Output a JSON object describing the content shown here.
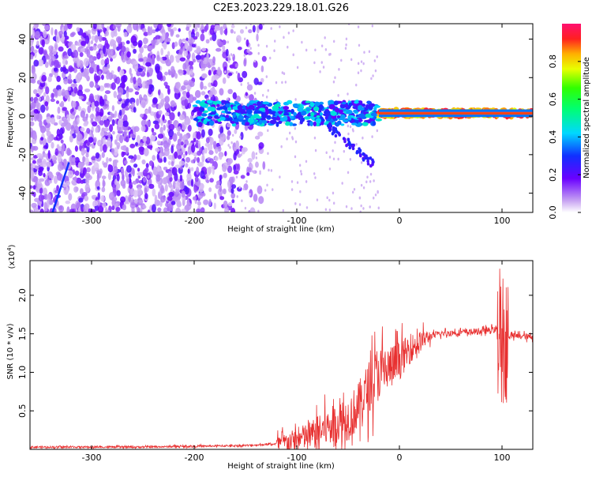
{
  "title": "C2E3.2023.229.18.01.G26",
  "chart_data": [
    {
      "type": "heatmap",
      "xlabel": "Height of straight line (km)",
      "ylabel": "Frequency (Hz)",
      "xlim": [
        -360,
        130
      ],
      "ylim": [
        -50,
        48
      ],
      "xticks": [
        -300,
        -200,
        -100,
        0,
        100
      ],
      "xtick_labels": [
        "-300",
        "-200",
        "-100",
        "0",
        "100"
      ],
      "yticks": [
        -40,
        -20,
        0,
        20,
        40
      ],
      "ytick_labels": [
        "-40",
        "-20",
        "0",
        "20",
        "40"
      ],
      "colorbar": {
        "label": "Normalized spectral amplitude",
        "range": [
          0,
          1
        ],
        "ticks": [
          0.0,
          0.2,
          0.4,
          0.6,
          0.8
        ],
        "tick_labels": [
          "0.0",
          "0.2",
          "0.4",
          "0.6",
          "0.8"
        ],
        "colormap": "rainbow-white"
      },
      "features": {
        "noise_region_x": [
          -360,
          -160
        ],
        "signal_band_center_hz": 1.5,
        "strong_signal_x": [
          -20,
          130
        ]
      }
    },
    {
      "type": "line",
      "xlabel": "Height of straight line (km)",
      "ylabel": "SNR (10 * v/v)",
      "y_multiplier": "(x10",
      "y_multiplier_exp": "4",
      "y_multiplier_close": ")",
      "xlim": [
        -360,
        130
      ],
      "ylim": [
        0,
        2.45
      ],
      "xticks": [
        -300,
        -200,
        -100,
        0,
        100
      ],
      "xtick_labels": [
        "-300",
        "-200",
        "-100",
        "0",
        "100"
      ],
      "yticks": [
        0.5,
        1.0,
        1.5,
        2.0
      ],
      "ytick_labels": [
        "0.5",
        "1.0",
        "1.5",
        "2.0"
      ],
      "color": "#e83030",
      "series": [
        {
          "x": [
            -360,
            -300,
            -250,
            -200,
            -150,
            -120,
            -100,
            -80,
            -60,
            -50,
            -40,
            -30,
            -20,
            -10,
            0,
            10,
            20,
            30,
            40,
            60,
            80,
            90,
            95,
            100,
            105,
            110,
            120,
            130
          ],
          "y": [
            0.03,
            0.03,
            0.03,
            0.04,
            0.05,
            0.07,
            0.12,
            0.22,
            0.35,
            0.4,
            0.55,
            0.8,
            1.0,
            1.05,
            1.15,
            1.3,
            1.4,
            1.47,
            1.5,
            1.52,
            1.53,
            1.55,
            1.55,
            1.5,
            1.48,
            1.47,
            1.47,
            1.45
          ]
        }
      ]
    }
  ]
}
